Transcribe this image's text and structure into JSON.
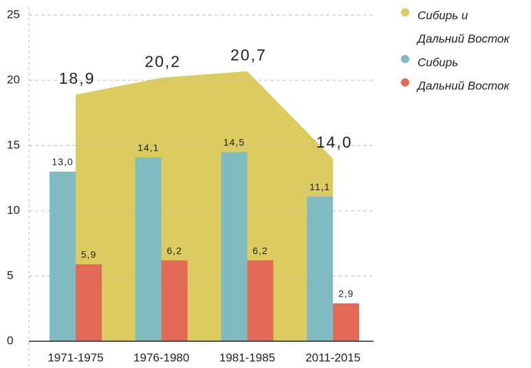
{
  "chart_data": {
    "type": "bar",
    "categories": [
      "1971-1975",
      "1976-1980",
      "1981-1985",
      "2011-2015"
    ],
    "series": [
      {
        "name": "Сибирь и Дальний Восток",
        "type": "area",
        "color": "#dccb5e",
        "values": [
          18.9,
          20.2,
          20.7,
          14.0
        ],
        "value_labels": [
          "18,9",
          "20,2",
          "20,7",
          "14,0"
        ]
      },
      {
        "name": "Сибирь",
        "type": "bar",
        "color": "#80bcbf",
        "values": [
          13.0,
          14.1,
          14.5,
          11.1
        ],
        "value_labels": [
          "13,0",
          "14,1",
          "14,5",
          "11,1"
        ]
      },
      {
        "name": "Дальний Восток",
        "type": "bar",
        "color": "#e06a55",
        "values": [
          5.9,
          6.2,
          6.2,
          2.9
        ],
        "value_labels": [
          "5,9",
          "6,2",
          "6,2",
          "2,9"
        ]
      }
    ],
    "ylim": [
      0,
      25
    ],
    "yticks": [
      0,
      5,
      10,
      15,
      20,
      25
    ],
    "grid": true,
    "legend": "top-right"
  }
}
